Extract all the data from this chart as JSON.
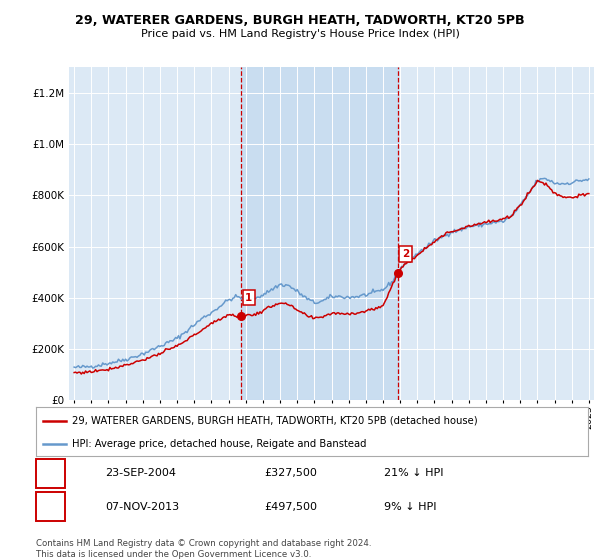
{
  "title": "29, WATERER GARDENS, BURGH HEATH, TADWORTH, KT20 5PB",
  "subtitle": "Price paid vs. HM Land Registry's House Price Index (HPI)",
  "legend_line1": "29, WATERER GARDENS, BURGH HEATH, TADWORTH, KT20 5PB (detached house)",
  "legend_line2": "HPI: Average price, detached house, Reigate and Banstead",
  "purchase1_date": "23-SEP-2004",
  "purchase1_price": 327500,
  "purchase1_hpi_diff": "21% ↓ HPI",
  "purchase2_date": "07-NOV-2013",
  "purchase2_price": 497500,
  "purchase2_hpi_diff": "9% ↓ HPI",
  "footer": "Contains HM Land Registry data © Crown copyright and database right 2024.\nThis data is licensed under the Open Government Licence v3.0.",
  "line_color_price": "#cc0000",
  "line_color_hpi": "#6699cc",
  "background_chart": "#dce9f5",
  "marker1_x": 2004.72,
  "marker2_x": 2013.85,
  "marker1_y": 327500,
  "marker2_y": 497500,
  "ylim": [
    0,
    1300000
  ],
  "xlim_start": 1994.7,
  "xlim_end": 2025.3,
  "yticks": [
    0,
    200000,
    400000,
    600000,
    800000,
    1000000,
    1200000
  ],
  "xticks": [
    1995,
    1996,
    1997,
    1998,
    1999,
    2000,
    2001,
    2002,
    2003,
    2004,
    2005,
    2006,
    2007,
    2008,
    2009,
    2010,
    2011,
    2012,
    2013,
    2014,
    2015,
    2016,
    2017,
    2018,
    2019,
    2020,
    2021,
    2022,
    2023,
    2024,
    2025
  ]
}
